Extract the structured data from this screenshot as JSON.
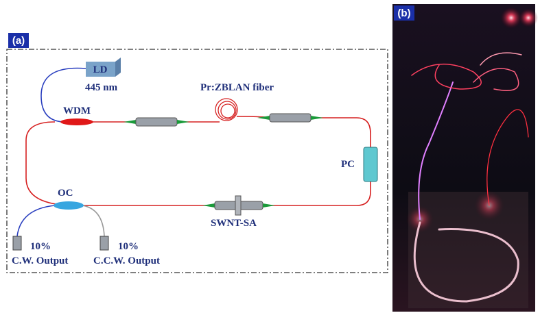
{
  "panel_a": {
    "label": "(a)",
    "components": {
      "ld": "LD",
      "wavelength": "445 nm",
      "wdm": "WDM",
      "fiber": "Pr:ZBLAN fiber",
      "pc": "PC",
      "oc": "OC",
      "sa": "SWNT-SA"
    },
    "outputs": [
      {
        "ratio": "10%",
        "name": "C.W. Output"
      },
      {
        "ratio": "10%",
        "name": "C.C.W. Output"
      }
    ]
  },
  "panel_b": {
    "label": "(b)"
  }
}
